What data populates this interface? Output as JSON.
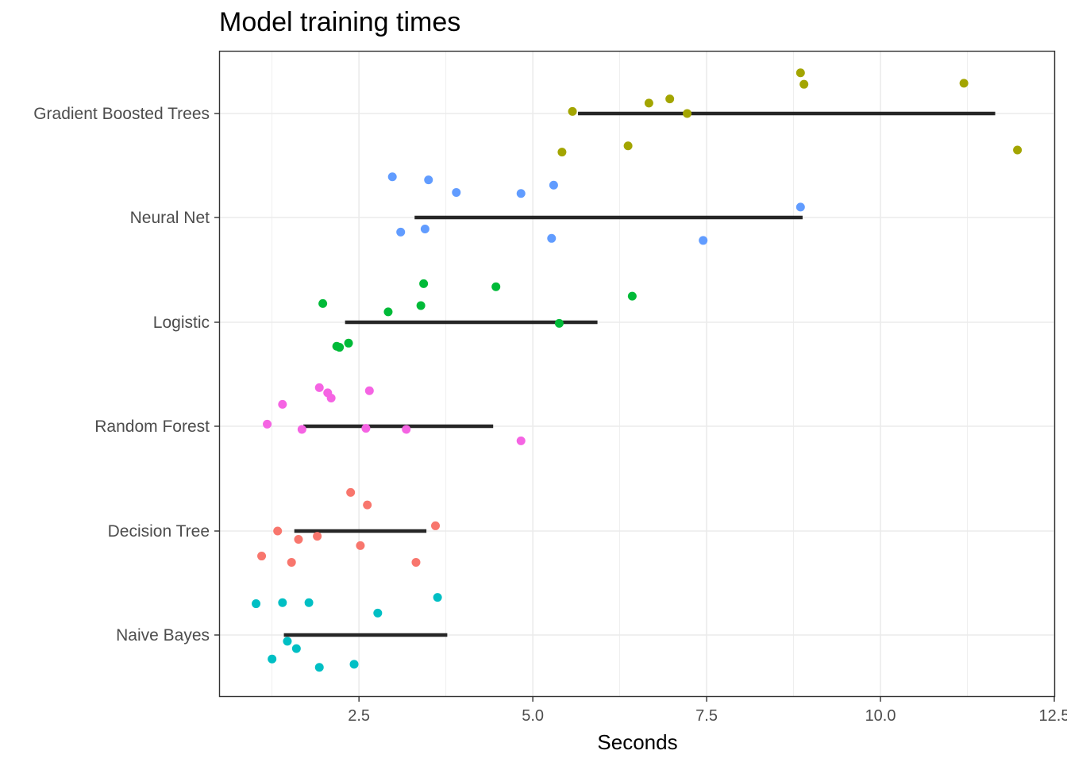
{
  "chart_data": {
    "type": "scatter",
    "title": "Model training times",
    "xlabel": "Seconds",
    "ylabel": "",
    "xlim": [
      0.5,
      12.5
    ],
    "x_ticks": [
      "2.5",
      "5.0",
      "7.5",
      "10.0",
      "12.5"
    ],
    "x_tick_values": [
      2.5,
      5.0,
      7.5,
      10.0,
      12.5
    ],
    "categories": [
      "Gradient Boosted Trees",
      "Neural Net",
      "Logistic",
      "Random Forest",
      "Decision Tree",
      "Naive Bayes"
    ],
    "grid": true,
    "legend": "none",
    "series": [
      {
        "category": "Gradient Boosted Trees",
        "color": "#A3A500",
        "interval": [
          5.65,
          11.65
        ],
        "points": [
          {
            "x": 8.85,
            "jitter": 0.39
          },
          {
            "x": 8.9,
            "jitter": 0.28
          },
          {
            "x": 11.2,
            "jitter": 0.29
          },
          {
            "x": 6.97,
            "jitter": 0.14
          },
          {
            "x": 6.67,
            "jitter": 0.1
          },
          {
            "x": 5.57,
            "jitter": 0.02
          },
          {
            "x": 7.22,
            "jitter": 0.0
          },
          {
            "x": 6.37,
            "jitter": -0.31
          },
          {
            "x": 5.42,
            "jitter": -0.37
          },
          {
            "x": 11.97,
            "jitter": -0.35
          }
        ]
      },
      {
        "category": "Neural Net",
        "color": "#619CFF",
        "interval": [
          3.3,
          8.88
        ],
        "points": [
          {
            "x": 2.98,
            "jitter": 0.39
          },
          {
            "x": 3.5,
            "jitter": 0.36
          },
          {
            "x": 3.9,
            "jitter": 0.24
          },
          {
            "x": 4.83,
            "jitter": 0.23
          },
          {
            "x": 5.3,
            "jitter": 0.31
          },
          {
            "x": 8.85,
            "jitter": 0.1
          },
          {
            "x": 3.1,
            "jitter": -0.14
          },
          {
            "x": 3.45,
            "jitter": -0.11
          },
          {
            "x": 5.27,
            "jitter": -0.2
          },
          {
            "x": 7.45,
            "jitter": -0.22
          }
        ]
      },
      {
        "category": "Logistic",
        "color": "#00BA38",
        "interval": [
          2.3,
          5.93
        ],
        "points": [
          {
            "x": 3.43,
            "jitter": 0.37
          },
          {
            "x": 4.47,
            "jitter": 0.34
          },
          {
            "x": 6.43,
            "jitter": 0.25
          },
          {
            "x": 1.98,
            "jitter": 0.18
          },
          {
            "x": 2.92,
            "jitter": 0.1
          },
          {
            "x": 3.39,
            "jitter": 0.16
          },
          {
            "x": 5.38,
            "jitter": -0.01
          },
          {
            "x": 2.35,
            "jitter": -0.2
          },
          {
            "x": 2.18,
            "jitter": -0.23
          },
          {
            "x": 2.22,
            "jitter": -0.24
          }
        ]
      },
      {
        "category": "Random Forest",
        "color": "#F564E3",
        "interval": [
          1.7,
          4.43
        ],
        "points": [
          {
            "x": 1.93,
            "jitter": 0.37
          },
          {
            "x": 2.05,
            "jitter": 0.32
          },
          {
            "x": 2.1,
            "jitter": 0.27
          },
          {
            "x": 2.65,
            "jitter": 0.34
          },
          {
            "x": 1.4,
            "jitter": 0.21
          },
          {
            "x": 1.18,
            "jitter": 0.02
          },
          {
            "x": 1.68,
            "jitter": -0.03
          },
          {
            "x": 2.6,
            "jitter": -0.02
          },
          {
            "x": 3.18,
            "jitter": -0.03
          },
          {
            "x": 4.83,
            "jitter": -0.14
          }
        ]
      },
      {
        "category": "Decision Tree",
        "color": "#F8766D",
        "interval": [
          1.57,
          3.47
        ],
        "points": [
          {
            "x": 2.38,
            "jitter": 0.37
          },
          {
            "x": 2.62,
            "jitter": 0.25
          },
          {
            "x": 3.6,
            "jitter": 0.05
          },
          {
            "x": 1.33,
            "jitter": 0.0
          },
          {
            "x": 1.63,
            "jitter": -0.08
          },
          {
            "x": 1.9,
            "jitter": -0.05
          },
          {
            "x": 2.52,
            "jitter": -0.14
          },
          {
            "x": 1.1,
            "jitter": -0.24
          },
          {
            "x": 1.53,
            "jitter": -0.3
          },
          {
            "x": 3.32,
            "jitter": -0.3
          }
        ]
      },
      {
        "category": "Naive Bayes",
        "color": "#00BFC4",
        "interval": [
          1.42,
          3.77
        ],
        "points": [
          {
            "x": 3.63,
            "jitter": 0.36
          },
          {
            "x": 1.02,
            "jitter": 0.3
          },
          {
            "x": 1.4,
            "jitter": 0.31
          },
          {
            "x": 1.78,
            "jitter": 0.31
          },
          {
            "x": 2.77,
            "jitter": 0.21
          },
          {
            "x": 1.47,
            "jitter": -0.06
          },
          {
            "x": 1.6,
            "jitter": -0.13
          },
          {
            "x": 1.25,
            "jitter": -0.23
          },
          {
            "x": 1.93,
            "jitter": -0.31
          },
          {
            "x": 2.43,
            "jitter": -0.28
          }
        ]
      }
    ]
  }
}
